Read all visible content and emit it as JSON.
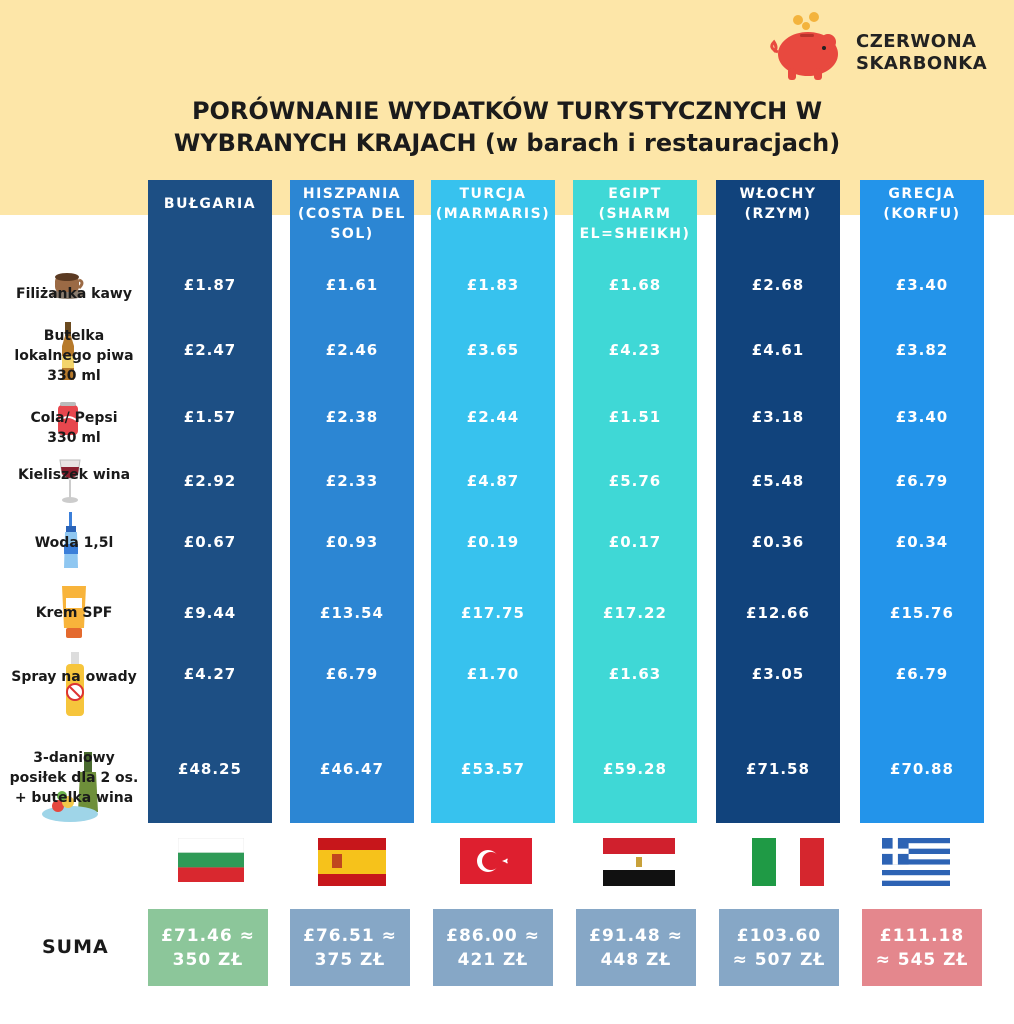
{
  "brand": {
    "line1": "CZERWONA",
    "line2": "SKARBONKA"
  },
  "title": {
    "line1": "PORÓWNANIE WYDATKÓW TURYSTYCZNYCH W",
    "line2": "WYBRANYCH KRAJACH (w barach i restauracjach)"
  },
  "chart_data": {
    "type": "table",
    "title": "PORÓWNANIE WYDATKÓW TURYSTYCZNYCH W WYBRANYCH KRAJACH (w barach i restauracjach)",
    "columns": [
      {
        "head": [
          "BUŁGARIA"
        ],
        "color": "#1d4f84",
        "flag": "bulgaria",
        "values": [
          "£1.87",
          "£2.47",
          "£1.57",
          "£2.92",
          "£0.67",
          "£9.44",
          "£4.27",
          "£48.25"
        ],
        "sum": [
          "£71.46 ≈",
          "350 ZŁ"
        ],
        "sum_color": "#8cc69a"
      },
      {
        "head": [
          "HISZPANIA",
          "(COSTA DEL",
          "SOL)"
        ],
        "color": "#2c86d3",
        "flag": "spain",
        "values": [
          "£1.61",
          "£2.46",
          "£2.38",
          "£2.33",
          "£0.93",
          "£13.54",
          "£6.79",
          "£46.47"
        ],
        "sum": [
          "£76.51 ≈",
          "375 ZŁ"
        ],
        "sum_color": "#86a7c6"
      },
      {
        "head": [
          "TURCJA",
          "(MARMARIS)"
        ],
        "color": "#37c2ee",
        "flag": "turkey",
        "values": [
          "£1.83",
          "£3.65",
          "£2.44",
          "£4.87",
          "£0.19",
          "£17.75",
          "£1.70",
          "£53.57"
        ],
        "sum": [
          "£86.00 ≈",
          "421 ZŁ"
        ],
        "sum_color": "#86a7c6"
      },
      {
        "head": [
          "EGIPT",
          "(SHARM",
          "EL=SHEIKH)"
        ],
        "color": "#3fd8d6",
        "flag": "egypt",
        "values": [
          "£1.68",
          "£4.23",
          "£1.51",
          "£5.76",
          "£0.17",
          "£17.22",
          "£1.63",
          "£59.28"
        ],
        "sum": [
          "£91.48 ≈",
          "448 ZŁ"
        ],
        "sum_color": "#86a7c6"
      },
      {
        "head": [
          "WŁOCHY",
          "(RZYM)"
        ],
        "color": "#11437c",
        "flag": "italy",
        "values": [
          "£2.68",
          "£4.61",
          "£3.18",
          "£5.48",
          "£0.36",
          "£12.66",
          "£3.05",
          "£71.58"
        ],
        "sum": [
          "£103.60",
          "≈ 507 ZŁ"
        ],
        "sum_color": "#86a7c6"
      },
      {
        "head": [
          "GRECJA",
          "(KORFU)"
        ],
        "color": "#2394ea",
        "flag": "greece",
        "values": [
          "£3.40",
          "£3.82",
          "£3.40",
          "£6.79",
          "£0.34",
          "£15.76",
          "£6.79",
          "£70.88"
        ],
        "sum": [
          "£111.18",
          "≈ 545 ZŁ"
        ],
        "sum_color": "#e4878d"
      }
    ],
    "rows": [
      {
        "label": [
          "Filiżanka kawy"
        ],
        "icon": "coffee-cup-icon"
      },
      {
        "label": [
          "Butelka",
          "lokalnego piwa",
          "330 ml"
        ],
        "icon": "beer-bottle-icon"
      },
      {
        "label": [
          "Cola/ Pepsi",
          "330 ml"
        ],
        "icon": "soda-can-icon"
      },
      {
        "label": [
          "Kieliszek wina"
        ],
        "icon": "wine-glass-icon"
      },
      {
        "label": [
          "Woda 1,5l"
        ],
        "icon": "water-bottle-icon"
      },
      {
        "label": [
          "Krem SPF"
        ],
        "icon": "sunscreen-icon"
      },
      {
        "label": [
          "Spray na owady"
        ],
        "icon": "insect-spray-icon"
      },
      {
        "label": [
          "3-daniowy",
          "posiłek dla 2 os.",
          "+ butelka wina"
        ],
        "icon": "meal-icon"
      }
    ],
    "sum_label": "SUMA"
  }
}
